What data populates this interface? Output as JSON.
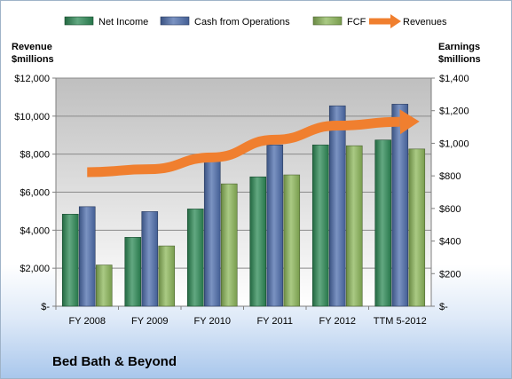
{
  "company": "Bed Bath & Beyond",
  "chart_data": {
    "type": "bar",
    "categories": [
      "FY 2008",
      "FY 2009",
      "FY 2010",
      "FY 2011",
      "FY 2012",
      "TTM 5-2012"
    ],
    "left_axis": {
      "label_line1": "Revenue",
      "label_line2": "$millions",
      "min": 0,
      "max": 12000,
      "ticks": [
        {
          "value": 0,
          "label": "$-"
        },
        {
          "value": 2000,
          "label": "$2,000"
        },
        {
          "value": 4000,
          "label": "$4,000"
        },
        {
          "value": 6000,
          "label": "$6,000"
        },
        {
          "value": 8000,
          "label": "$8,000"
        },
        {
          "value": 10000,
          "label": "$10,000"
        },
        {
          "value": 12000,
          "label": "$12,000"
        }
      ]
    },
    "right_axis": {
      "label_line1": "Earnings",
      "label_line2": "$millions",
      "min": 0,
      "max": 1400,
      "ticks": [
        {
          "value": 0,
          "label": "$-"
        },
        {
          "value": 200,
          "label": "$200"
        },
        {
          "value": 400,
          "label": "$400"
        },
        {
          "value": 600,
          "label": "$600"
        },
        {
          "value": 800,
          "label": "$800"
        },
        {
          "value": 1000,
          "label": "$1,000"
        },
        {
          "value": 1200,
          "label": "$1,200"
        },
        {
          "value": 1400,
          "label": "$1,400"
        }
      ]
    },
    "series": [
      {
        "name": "Net Income",
        "kind": "bar",
        "axis": "right",
        "color": "#2e8b57",
        "values": [
          565,
          423,
          597,
          794,
          990,
          1020
        ]
      },
      {
        "name": "Cash from Operations",
        "kind": "bar",
        "axis": "right",
        "color": "#4f6fae",
        "values": [
          611,
          581,
          910,
          990,
          1230,
          1240
        ]
      },
      {
        "name": "FCF",
        "kind": "bar",
        "axis": "right",
        "color": "#8db85b",
        "values": [
          253,
          370,
          751,
          806,
          985,
          965
        ]
      },
      {
        "name": "Revenues",
        "kind": "line",
        "axis": "left",
        "color": "#f07f2f",
        "values": [
          7049,
          7208,
          7829,
          8759,
          9500,
          9700
        ]
      }
    ],
    "legend_position": "top",
    "grid": true
  }
}
